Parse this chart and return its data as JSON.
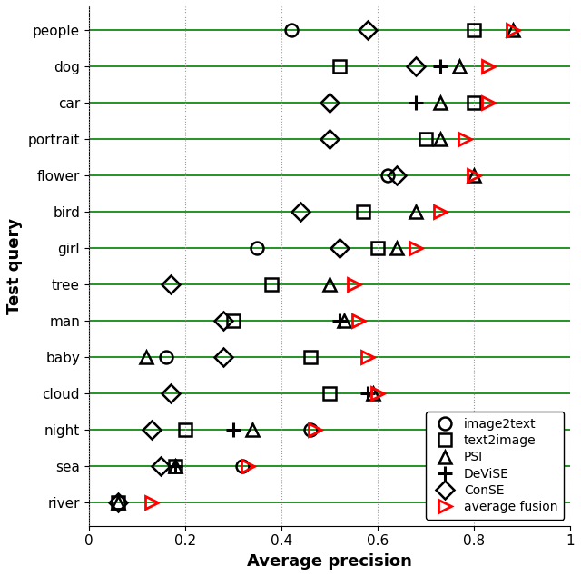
{
  "queries": [
    "people",
    "dog",
    "car",
    "portrait",
    "flower",
    "bird",
    "girl",
    "tree",
    "man",
    "baby",
    "cloud",
    "night",
    "sea",
    "river"
  ],
  "image2text": [
    0.42,
    null,
    null,
    null,
    0.62,
    null,
    0.35,
    null,
    null,
    0.16,
    null,
    0.46,
    0.32,
    null
  ],
  "text2image": [
    0.8,
    0.52,
    0.8,
    0.7,
    null,
    0.57,
    0.6,
    0.38,
    0.3,
    0.46,
    0.5,
    0.2,
    0.18,
    0.06
  ],
  "PSI": [
    0.88,
    0.77,
    0.73,
    0.73,
    0.8,
    0.68,
    0.64,
    0.5,
    0.53,
    0.12,
    0.59,
    0.34,
    0.18,
    0.06
  ],
  "DeViSE": [
    null,
    0.73,
    0.68,
    null,
    null,
    null,
    null,
    null,
    0.52,
    null,
    0.58,
    0.3,
    0.18,
    null
  ],
  "ConSE": [
    0.58,
    0.68,
    0.5,
    0.5,
    0.64,
    0.44,
    0.52,
    0.17,
    0.28,
    0.28,
    0.17,
    0.13,
    0.15,
    0.06
  ],
  "avg_fusion": [
    0.88,
    0.83,
    0.83,
    0.78,
    0.8,
    0.73,
    0.68,
    0.55,
    0.56,
    0.58,
    0.6,
    0.47,
    0.33,
    0.13
  ],
  "xlim": [
    0,
    1
  ],
  "xlabel": "Average precision",
  "ylabel": "Test query",
  "legend_labels": [
    "image2text",
    "text2image",
    "PSI",
    "DeViSE",
    "ConSE",
    "average fusion"
  ],
  "bg_color": "#ffffff",
  "figwidth": 6.4,
  "figheight": 6.34,
  "dpi": 100
}
